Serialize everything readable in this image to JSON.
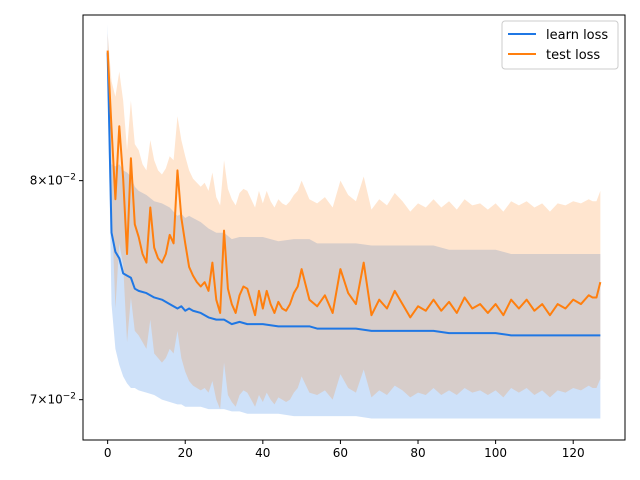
{
  "chart_data": {
    "type": "line",
    "title": "",
    "xlabel": "",
    "ylabel": "",
    "yscale": "log",
    "xlim": [
      -6.35,
      133.35
    ],
    "ylim": [
      0.0683,
      0.0885
    ],
    "grid": false,
    "legend_position": "top-right",
    "x_ticks": [
      0,
      20,
      40,
      60,
      80,
      100,
      120
    ],
    "x_tick_labels": [
      "0",
      "20",
      "40",
      "60",
      "80",
      "100",
      "120"
    ],
    "y_ticks": [
      0.08,
      0.07
    ],
    "y_tick_labels": [
      {
        "mantissa": "8",
        "times": "×10",
        "exp": "−2"
      },
      {
        "mantissa": "7",
        "times": "×10",
        "exp": "−2"
      }
    ],
    "series": [
      {
        "name": "learn loss",
        "color": "#1f77e4",
        "band_color": "#1f77e4",
        "band_opacity": 0.22,
        "x": [
          0,
          1,
          2,
          3,
          4,
          5,
          6,
          7,
          8,
          10,
          12,
          14,
          16,
          18,
          19,
          20,
          21,
          22,
          24,
          26,
          28,
          30,
          32,
          34,
          36,
          38,
          40,
          44,
          48,
          52,
          54,
          56,
          60,
          64,
          68,
          72,
          76,
          80,
          84,
          88,
          92,
          96,
          100,
          104,
          108,
          112,
          116,
          120,
          124,
          127
        ],
        "y": [
          0.0865,
          0.0775,
          0.0766,
          0.0763,
          0.0756,
          0.0755,
          0.0754,
          0.0749,
          0.0748,
          0.0747,
          0.0745,
          0.0744,
          0.0742,
          0.074,
          0.0741,
          0.0739,
          0.074,
          0.0739,
          0.0738,
          0.0736,
          0.0735,
          0.0735,
          0.0733,
          0.0734,
          0.0733,
          0.0733,
          0.0733,
          0.0732,
          0.0732,
          0.0732,
          0.0731,
          0.0731,
          0.0731,
          0.0731,
          0.073,
          0.073,
          0.073,
          0.073,
          0.073,
          0.0729,
          0.0729,
          0.0729,
          0.0729,
          0.0728,
          0.0728,
          0.0728,
          0.0728,
          0.0728,
          0.0728,
          0.0728
        ],
        "lower": [
          0.085,
          0.0742,
          0.0722,
          0.0715,
          0.071,
          0.0707,
          0.0705,
          0.0705,
          0.0704,
          0.0703,
          0.0702,
          0.07,
          0.0699,
          0.0698,
          0.0698,
          0.0697,
          0.0697,
          0.0697,
          0.0697,
          0.0696,
          0.0696,
          0.0696,
          0.0695,
          0.0695,
          0.0694,
          0.0694,
          0.0694,
          0.0694,
          0.0693,
          0.0693,
          0.0693,
          0.0693,
          0.0693,
          0.0693,
          0.0692,
          0.0692,
          0.0692,
          0.0692,
          0.0692,
          0.0692,
          0.0692,
          0.0692,
          0.0692,
          0.0692,
          0.0692,
          0.0692,
          0.0692,
          0.0692,
          0.0692,
          0.0692
        ],
        "upper": [
          0.088,
          0.0808,
          0.0807,
          0.0808,
          0.0805,
          0.0804,
          0.0802,
          0.0797,
          0.0795,
          0.0793,
          0.079,
          0.0789,
          0.0787,
          0.0783,
          0.0784,
          0.0782,
          0.0783,
          0.0782,
          0.078,
          0.0777,
          0.0775,
          0.0775,
          0.0772,
          0.0773,
          0.0773,
          0.0773,
          0.0773,
          0.0771,
          0.0772,
          0.0772,
          0.077,
          0.077,
          0.077,
          0.077,
          0.0769,
          0.0769,
          0.0769,
          0.0769,
          0.0769,
          0.0767,
          0.0767,
          0.0767,
          0.0767,
          0.0765,
          0.0765,
          0.0765,
          0.0765,
          0.0765,
          0.0765,
          0.0765
        ]
      },
      {
        "name": "test loss",
        "color": "#ff7f0e",
        "band_color": "#ff7f0e",
        "band_opacity": 0.2,
        "x": [
          0,
          1,
          2,
          3,
          4,
          5,
          6,
          7,
          8,
          9,
          10,
          11,
          12,
          13,
          14,
          15,
          16,
          17,
          18,
          19,
          20,
          21,
          22,
          23,
          24,
          25,
          26,
          27,
          28,
          29,
          30,
          31,
          32,
          33,
          34,
          35,
          36,
          37,
          38,
          39,
          40,
          41,
          42,
          43,
          44,
          45,
          46,
          47,
          48,
          49,
          50,
          52,
          54,
          56,
          58,
          60,
          62,
          64,
          66,
          68,
          70,
          72,
          74,
          76,
          78,
          80,
          82,
          84,
          86,
          88,
          90,
          92,
          94,
          96,
          98,
          100,
          102,
          104,
          106,
          108,
          110,
          112,
          114,
          116,
          118,
          120,
          122,
          124,
          125,
          126,
          127
        ],
        "y": [
          0.0866,
          0.0826,
          0.0791,
          0.0827,
          0.0801,
          0.0765,
          0.0811,
          0.0779,
          0.0773,
          0.0765,
          0.0761,
          0.0787,
          0.0768,
          0.0763,
          0.0761,
          0.0765,
          0.0774,
          0.077,
          0.0805,
          0.0782,
          0.077,
          0.0759,
          0.0755,
          0.0752,
          0.075,
          0.0752,
          0.0748,
          0.0761,
          0.0744,
          0.0738,
          0.0776,
          0.0749,
          0.0742,
          0.0738,
          0.0746,
          0.075,
          0.0749,
          0.0743,
          0.0737,
          0.0748,
          0.074,
          0.0748,
          0.0742,
          0.0738,
          0.0743,
          0.074,
          0.0739,
          0.0742,
          0.0747,
          0.075,
          0.0758,
          0.0744,
          0.0741,
          0.0746,
          0.0738,
          0.0758,
          0.0747,
          0.0742,
          0.0761,
          0.0737,
          0.0744,
          0.074,
          0.0748,
          0.0742,
          0.0736,
          0.0741,
          0.0739,
          0.0744,
          0.0739,
          0.0743,
          0.0738,
          0.0745,
          0.074,
          0.0742,
          0.0738,
          0.0742,
          0.0737,
          0.0744,
          0.074,
          0.0744,
          0.0739,
          0.0742,
          0.0737,
          0.0742,
          0.074,
          0.0744,
          0.0742,
          0.0746,
          0.0745,
          0.0745,
          0.0752
        ],
        "lower": [
          0.085,
          0.079,
          0.074,
          0.077,
          0.076,
          0.0725,
          0.0745,
          0.073,
          0.0728,
          0.0725,
          0.0722,
          0.0735,
          0.072,
          0.0718,
          0.0716,
          0.0718,
          0.0722,
          0.072,
          0.073,
          0.0718,
          0.0712,
          0.0708,
          0.0706,
          0.0705,
          0.0704,
          0.0705,
          0.0703,
          0.0708,
          0.07,
          0.0696,
          0.0716,
          0.0702,
          0.0699,
          0.0697,
          0.0702,
          0.0704,
          0.0703,
          0.07,
          0.0697,
          0.0702,
          0.0699,
          0.0703,
          0.07,
          0.0698,
          0.0701,
          0.07,
          0.0699,
          0.07,
          0.0703,
          0.0705,
          0.071,
          0.0703,
          0.0702,
          0.0704,
          0.07,
          0.0711,
          0.0705,
          0.0703,
          0.0713,
          0.0701,
          0.0704,
          0.0702,
          0.0706,
          0.0704,
          0.0701,
          0.0703,
          0.0702,
          0.0705,
          0.0702,
          0.0704,
          0.0702,
          0.0705,
          0.0703,
          0.0704,
          0.0702,
          0.0704,
          0.0701,
          0.0705,
          0.0703,
          0.0705,
          0.0702,
          0.0704,
          0.0701,
          0.0704,
          0.0703,
          0.0705,
          0.0704,
          0.0706,
          0.0705,
          0.0705,
          0.0709
        ],
        "upper": [
          0.0875,
          0.085,
          0.0842,
          0.0855,
          0.084,
          0.0815,
          0.084,
          0.0818,
          0.0815,
          0.0808,
          0.0805,
          0.082,
          0.081,
          0.0805,
          0.0803,
          0.0806,
          0.0812,
          0.081,
          0.0832,
          0.082,
          0.0812,
          0.0805,
          0.0801,
          0.0799,
          0.0797,
          0.0799,
          0.0795,
          0.0804,
          0.0792,
          0.0788,
          0.081,
          0.0796,
          0.0791,
          0.0788,
          0.0794,
          0.0796,
          0.0795,
          0.0791,
          0.0787,
          0.0795,
          0.0789,
          0.0795,
          0.079,
          0.0787,
          0.0791,
          0.0789,
          0.0788,
          0.079,
          0.0793,
          0.0795,
          0.08,
          0.0791,
          0.0789,
          0.0792,
          0.0787,
          0.08,
          0.0793,
          0.079,
          0.0802,
          0.0786,
          0.0791,
          0.0788,
          0.0794,
          0.079,
          0.0785,
          0.0789,
          0.0787,
          0.0791,
          0.0787,
          0.079,
          0.0786,
          0.0791,
          0.0788,
          0.0789,
          0.0786,
          0.0789,
          0.0785,
          0.079,
          0.0788,
          0.079,
          0.0787,
          0.0789,
          0.0785,
          0.0789,
          0.0788,
          0.079,
          0.0789,
          0.0791,
          0.079,
          0.079,
          0.0795
        ]
      }
    ]
  }
}
